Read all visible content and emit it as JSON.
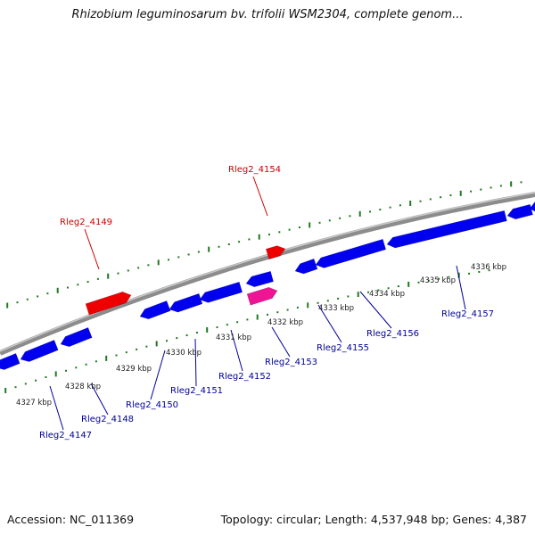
{
  "title": "Rhizobium leguminosarum bv. trifolii WSM2304, complete genom...",
  "footer": {
    "accession": "Accession: NC_011369",
    "summary": "Topology: circular; Length: 4,537,948 bp; Genes: 4,387"
  },
  "colors": {
    "backbone": "#8c8c8c",
    "forward_gene": "#ee0000",
    "reverse_gene": "#0000ee",
    "highlight_gene": "#ee1493",
    "tick": "#1f7a1f",
    "forward_label": "#cc0000",
    "reverse_label": "#000099"
  },
  "ticks": [
    "4327 kbp",
    "4328 kbp",
    "4329 kbp",
    "4330 kbp",
    "4331 kbp",
    "4332 kbp",
    "4333 kbp",
    "4334 kbp",
    "4335 kbp",
    "4336 kbp"
  ],
  "genes": {
    "forward": [
      "Rleg2_4149",
      "Rleg2_4154"
    ],
    "reverse": [
      "Rleg2_4147",
      "Rleg2_4148",
      "Rleg2_4150",
      "Rleg2_4151",
      "Rleg2_4152",
      "Rleg2_4153",
      "Rleg2_4155",
      "Rleg2_4156",
      "Rleg2_4157"
    ]
  }
}
